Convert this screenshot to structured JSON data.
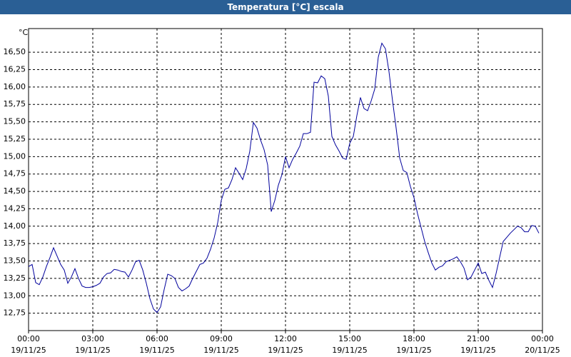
{
  "chart_data": {
    "type": "line",
    "title": "Temperatura [°C] escala",
    "y_unit": "°C",
    "x": [
      0,
      10,
      20,
      30,
      40,
      50,
      60,
      70,
      80,
      90,
      100,
      110,
      120,
      130,
      140,
      150,
      160,
      170,
      180,
      190,
      200,
      210,
      220,
      230,
      240,
      250,
      260,
      270,
      280,
      290,
      300,
      310,
      320,
      330,
      340,
      350,
      360,
      370,
      380,
      390,
      400,
      410,
      420,
      430,
      440,
      450,
      460,
      470,
      480,
      490,
      500,
      510,
      520,
      530,
      540,
      550,
      560,
      570,
      580,
      590,
      600,
      610,
      620,
      630,
      640,
      650,
      660,
      670,
      680,
      690,
      700,
      710,
      720,
      730,
      740,
      750,
      760,
      770,
      780,
      790,
      800,
      810,
      820,
      830,
      840,
      850,
      860,
      870,
      880,
      890,
      900,
      910,
      920,
      930,
      940,
      950,
      960,
      970,
      980,
      990,
      1000,
      1010,
      1020,
      1030,
      1040,
      1050,
      1060,
      1070,
      1080,
      1090,
      1100,
      1110,
      1120,
      1130,
      1140,
      1150,
      1160,
      1170,
      1180,
      1190,
      1200,
      1210,
      1220,
      1230,
      1240,
      1250,
      1260,
      1270,
      1280,
      1290,
      1300,
      1310,
      1320,
      1330,
      1340,
      1350,
      1360,
      1370,
      1380,
      1390,
      1400,
      1410,
      1420,
      1430
    ],
    "series": [
      {
        "color": "#00009c",
        "values": [
          13.42,
          13.45,
          13.19,
          13.16,
          13.27,
          13.42,
          13.55,
          13.69,
          13.57,
          13.45,
          13.37,
          13.18,
          13.27,
          13.39,
          13.25,
          13.14,
          13.12,
          13.12,
          13.13,
          13.15,
          13.18,
          13.27,
          13.32,
          13.33,
          13.38,
          13.37,
          13.35,
          13.34,
          13.27,
          13.37,
          13.49,
          13.51,
          13.37,
          13.18,
          12.96,
          12.81,
          12.76,
          12.84,
          13.09,
          13.31,
          13.29,
          13.25,
          13.12,
          13.07,
          13.1,
          13.14,
          13.25,
          13.35,
          13.45,
          13.47,
          13.54,
          13.67,
          13.83,
          14.05,
          14.37,
          14.53,
          14.55,
          14.67,
          14.84,
          14.76,
          14.67,
          14.83,
          15.08,
          15.49,
          15.41,
          15.24,
          15.1,
          14.88,
          14.21,
          14.37,
          14.59,
          14.74,
          15.0,
          14.84,
          14.96,
          15.05,
          15.15,
          15.33,
          15.33,
          15.35,
          16.07,
          16.06,
          16.16,
          16.12,
          15.87,
          15.29,
          15.17,
          15.08,
          14.98,
          14.96,
          15.19,
          15.29,
          15.59,
          15.85,
          15.69,
          15.66,
          15.8,
          15.97,
          16.43,
          16.63,
          16.55,
          16.22,
          15.8,
          15.41,
          14.98,
          14.8,
          14.77,
          14.57,
          14.41,
          14.18,
          13.98,
          13.78,
          13.62,
          13.47,
          13.37,
          13.41,
          13.43,
          13.49,
          13.51,
          13.53,
          13.56,
          13.49,
          13.4,
          13.23,
          13.27,
          13.37,
          13.47,
          13.32,
          13.34,
          13.22,
          13.12,
          13.32,
          13.55,
          13.78,
          13.84,
          13.9,
          13.95,
          14.0,
          13.98,
          13.92,
          13.92,
          14.01,
          14.0,
          13.9
        ]
      }
    ],
    "xlim": [
      0,
      1440
    ],
    "xticks": [
      {
        "value": 0,
        "label": "00:00"
      },
      {
        "value": 180,
        "label": "03:00"
      },
      {
        "value": 360,
        "label": "06:00"
      },
      {
        "value": 540,
        "label": "09:00"
      },
      {
        "value": 720,
        "label": "12:00"
      },
      {
        "value": 900,
        "label": "15:00"
      },
      {
        "value": 1080,
        "label": "18:00"
      },
      {
        "value": 1260,
        "label": "21:00"
      },
      {
        "value": 1440,
        "label": "00:00"
      }
    ],
    "xtick_dates": [
      "19/11/25",
      "19/11/25",
      "19/11/25",
      "19/11/25",
      "19/11/25",
      "19/11/25",
      "19/11/25",
      "19/11/25",
      "20/11/25"
    ],
    "ylim": [
      12.5,
      16.84
    ],
    "yticks": [
      {
        "value": 12.75,
        "label": "12,75"
      },
      {
        "value": 13,
        "label": "13,00"
      },
      {
        "value": 13.25,
        "label": "13,25"
      },
      {
        "value": 13.5,
        "label": "13,50"
      },
      {
        "value": 13.75,
        "label": "13,75"
      },
      {
        "value": 14,
        "label": "14,00"
      },
      {
        "value": 14.25,
        "label": "14,25"
      },
      {
        "value": 14.5,
        "label": "14,50"
      },
      {
        "value": 14.75,
        "label": "14,75"
      },
      {
        "value": 15,
        "label": "15,00"
      },
      {
        "value": 15.25,
        "label": "15,25"
      },
      {
        "value": 15.5,
        "label": "15,50"
      },
      {
        "value": 15.75,
        "label": "15,75"
      },
      {
        "value": 16,
        "label": "16,00"
      },
      {
        "value": 16.25,
        "label": "16,25"
      },
      {
        "value": 16.5,
        "label": "16,50"
      }
    ],
    "grid": true
  }
}
